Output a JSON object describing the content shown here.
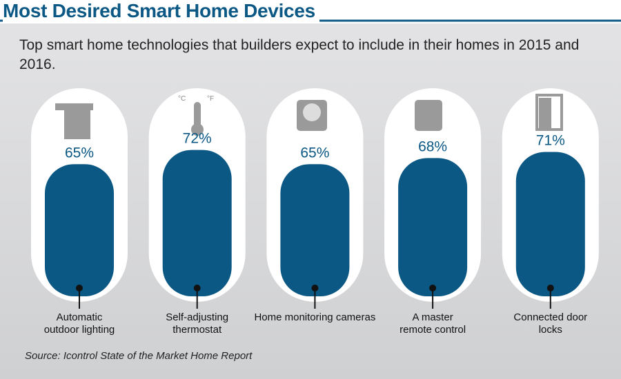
{
  "chart_data": {
    "type": "bar",
    "title": "Most Desired Smart Home Devices",
    "subtitle": "Top smart home technologies that builders expect to include in their homes in 2015 and 2016.",
    "categories": [
      "Automatic outdoor lighting",
      "Self-adjusting thermostat",
      "Home monitoring cameras",
      "A master remote control",
      "Connected door locks"
    ],
    "values": [
      65,
      72,
      65,
      68,
      71
    ],
    "value_labels": [
      "65%",
      "72%",
      "65%",
      "68%",
      "71%"
    ],
    "color": "#0b5885",
    "thermometer_scales": [
      "°C",
      "°F"
    ],
    "source": "Source: Icontrol State of the Market Home Report"
  }
}
